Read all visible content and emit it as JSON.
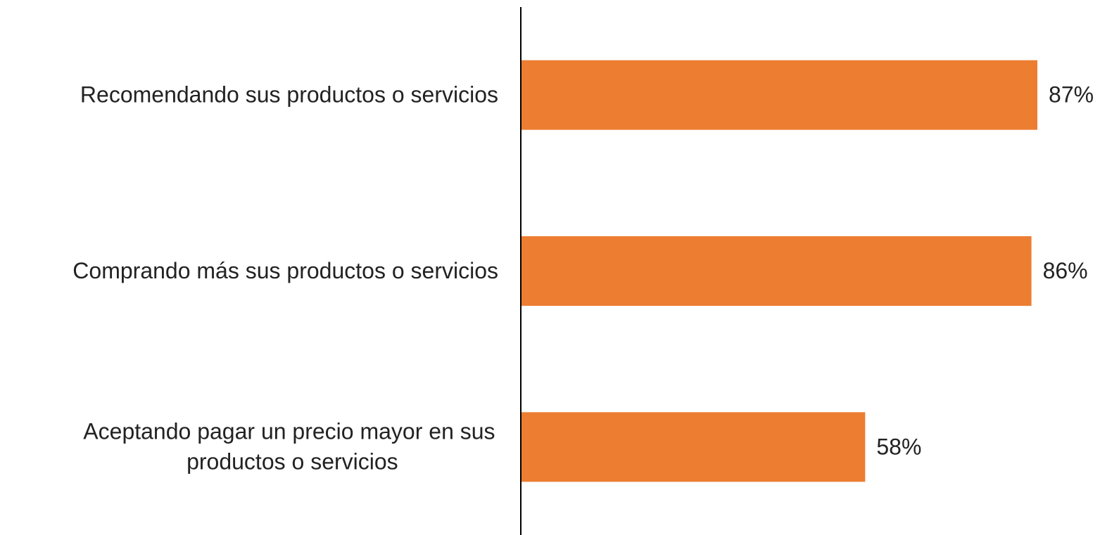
{
  "chart_data": {
    "type": "bar",
    "orientation": "horizontal",
    "categories": [
      "Recomendando sus productos o servicios",
      "Comprando más sus productos o servicios",
      "Aceptando pagar un precio mayor en sus productos o servicios"
    ],
    "values": [
      87,
      86,
      58
    ],
    "value_labels": [
      "87%",
      "86%",
      "58%"
    ],
    "color": "#ed7d31",
    "xlim": [
      0,
      100
    ]
  }
}
